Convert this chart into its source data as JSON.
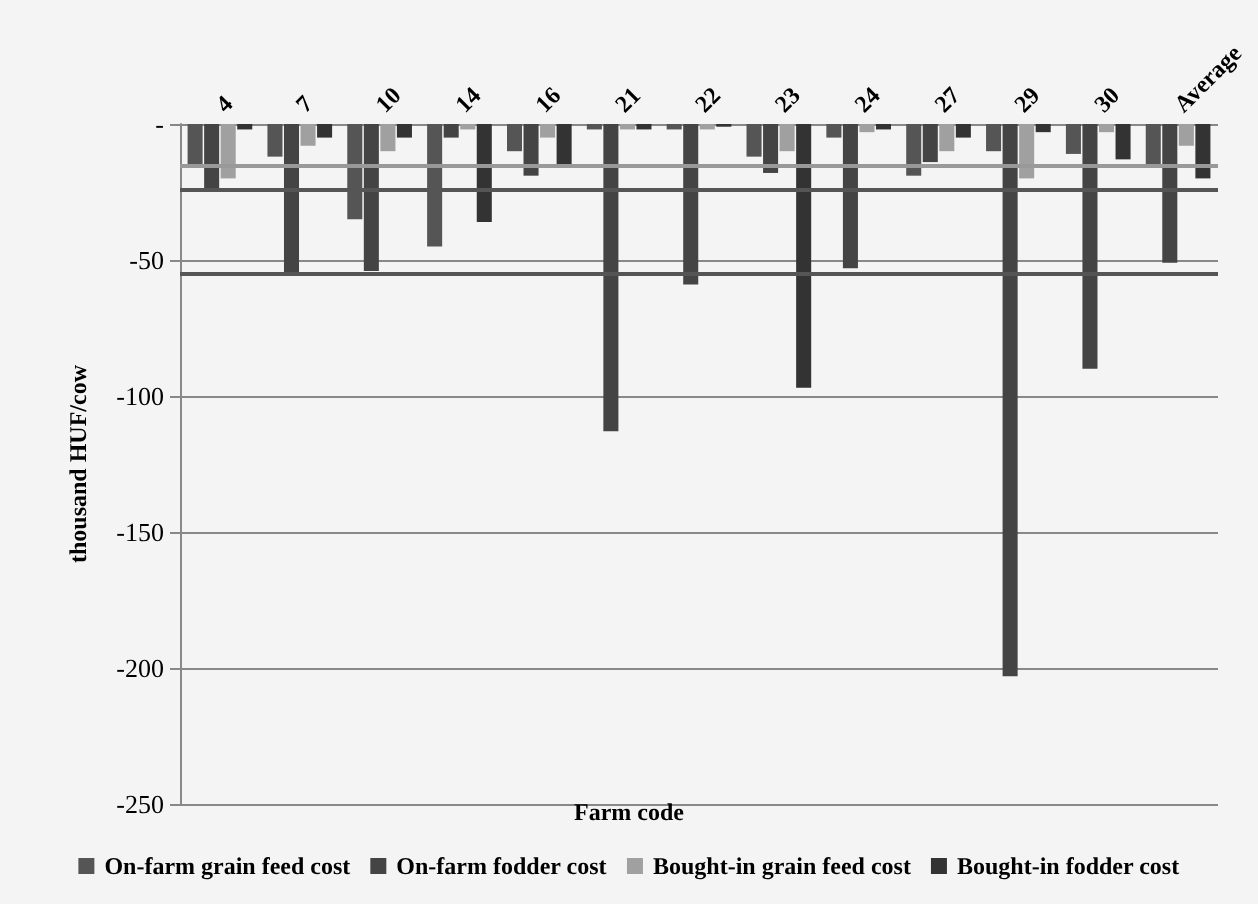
{
  "chart_data": {
    "type": "bar",
    "xlabel": "Farm code",
    "ylabel": "thousand HUF/cow",
    "categories": [
      "4",
      "7",
      "10",
      "14",
      "16",
      "21",
      "22",
      "23",
      "24",
      "27",
      "29",
      "30",
      "Average"
    ],
    "series": [
      {
        "name": "On-farm grain feed cost",
        "color": "#555555",
        "values": [
          -15,
          -12,
          -35,
          -45,
          -10,
          -2,
          -2,
          -12,
          -5,
          -19,
          -10,
          -11,
          -16
        ]
      },
      {
        "name": "On-farm fodder cost",
        "color": "#444444",
        "values": [
          -25,
          -55,
          -54,
          -5,
          -19,
          -113,
          -59,
          -18,
          -53,
          -14,
          -203,
          -90,
          -51
        ]
      },
      {
        "name": "Bought-in grain feed cost",
        "color": "#a0a0a0",
        "values": [
          -20,
          -8,
          -10,
          -2,
          -5,
          -2,
          -2,
          -10,
          -3,
          -10,
          -20,
          -3,
          -8
        ]
      },
      {
        "name": "Bought-in fodder cost",
        "color": "#333333",
        "values": [
          -2,
          -5,
          -5,
          -36,
          -16,
          -2,
          -1,
          -97,
          -2,
          -5,
          -3,
          -13,
          -20
        ]
      }
    ],
    "ylim": [
      -250,
      0
    ],
    "yticks": [
      {
        "value": 0,
        "label": "-"
      },
      -50,
      -100,
      -150,
      -200,
      -250
    ],
    "ref_lines": [
      {
        "axis": "y",
        "value": -15,
        "color": "#999999"
      },
      {
        "axis": "y",
        "value": -24,
        "color": "#555555"
      },
      {
        "axis": "y",
        "value": -55,
        "color": "#555555"
      }
    ],
    "grid": "y",
    "legend": "bottom"
  }
}
